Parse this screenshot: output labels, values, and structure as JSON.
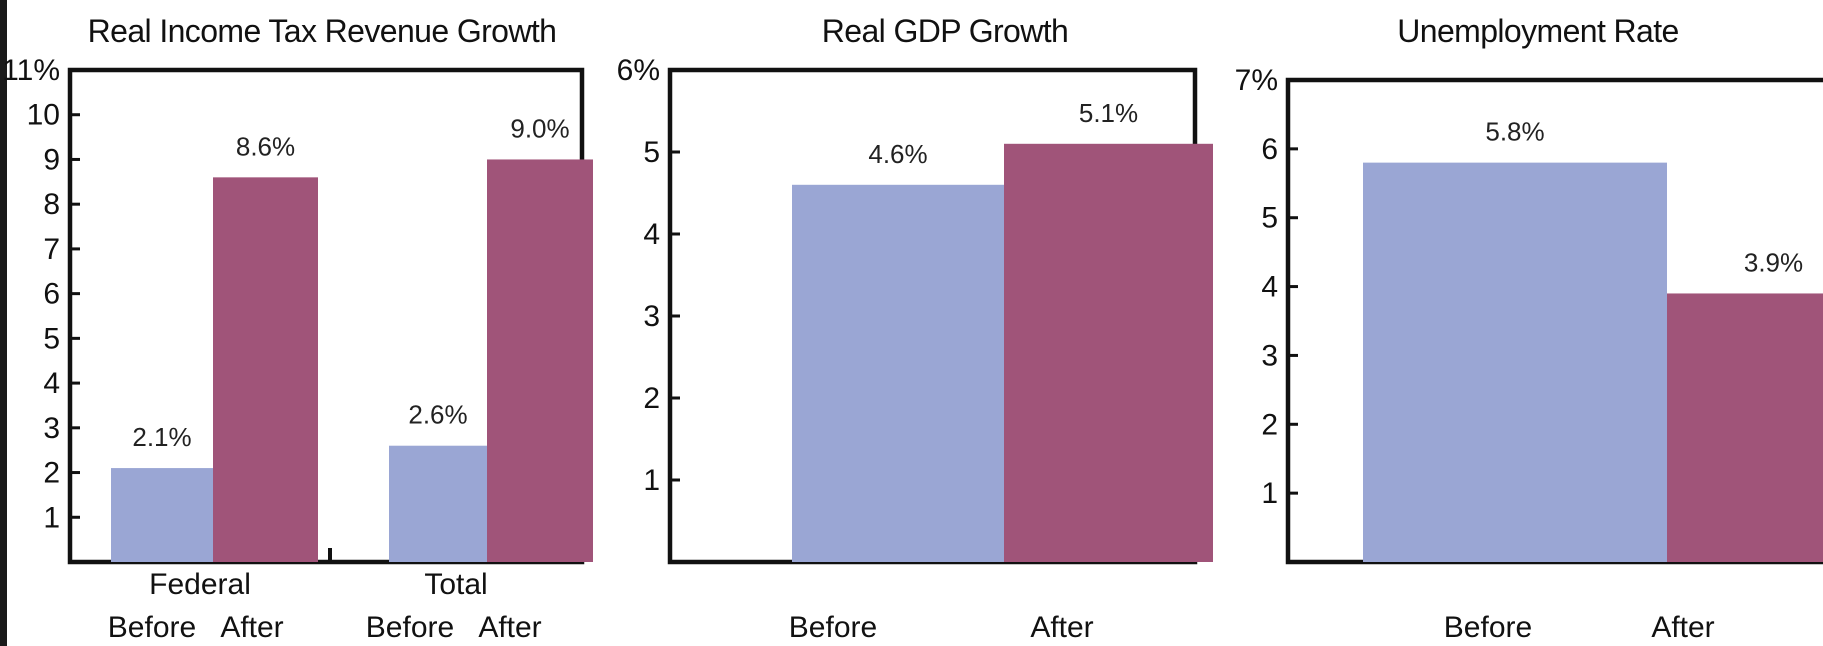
{
  "colors": {
    "before": "#9aa6d4",
    "after": "#a05479",
    "axis": "#111111"
  },
  "chart_data": [
    {
      "type": "bar",
      "title": "Real Income Tax Revenue Growth",
      "groups": [
        "Federal",
        "Total"
      ],
      "categories": [
        "Before",
        "After"
      ],
      "series": [
        {
          "values": [
            2.1,
            2.6
          ],
          "labels": [
            "2.1%",
            "2.6%"
          ]
        },
        {
          "values": [
            8.6,
            9.0
          ],
          "labels": [
            "8.6%",
            "9.0%"
          ]
        }
      ],
      "yticks": [
        "1",
        "2",
        "3",
        "4",
        "5",
        "6",
        "7",
        "8",
        "9",
        "10",
        "11%"
      ],
      "ylim": [
        0,
        11
      ],
      "grid": false
    },
    {
      "type": "bar",
      "title": "Real GDP Growth",
      "categories": [
        "Before",
        "After"
      ],
      "values": [
        4.6,
        5.1
      ],
      "labels": [
        "4.6%",
        "5.1%"
      ],
      "yticks": [
        "1",
        "2",
        "3",
        "4",
        "5",
        "6%"
      ],
      "ylim": [
        0,
        6
      ],
      "grid": false
    },
    {
      "type": "bar",
      "title": "Unemployment Rate",
      "categories": [
        "Before",
        "After"
      ],
      "values": [
        5.8,
        3.9
      ],
      "labels": [
        "5.8%",
        "3.9%"
      ],
      "yticks": [
        "1",
        "2",
        "3",
        "4",
        "5",
        "6",
        "7%"
      ],
      "ylim": [
        0,
        7
      ],
      "grid": false
    }
  ]
}
